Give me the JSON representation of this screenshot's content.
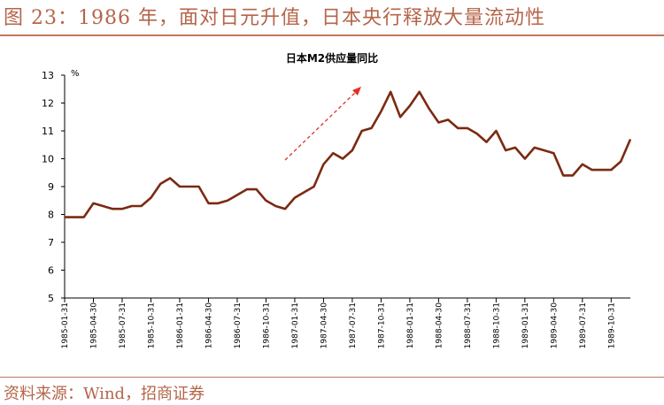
{
  "figure": {
    "title": "图 23：1986 年，面对日元升值，日本央行释放大量流动性",
    "source": "资料来源：Wind，招商证券"
  },
  "colors": {
    "accent": "#b5654a",
    "line": "#7b2a12",
    "arrow": "#e0302a"
  },
  "chart_data": {
    "type": "line",
    "title": "日本M2供应量同比",
    "ylabel": "%",
    "ylim": [
      5,
      13
    ],
    "yticks": [
      5,
      6,
      7,
      8,
      9,
      10,
      11,
      12,
      13
    ],
    "grid": false,
    "legend": "none",
    "xticklabels": [
      "1985-01-31",
      "1985-04-30",
      "1985-07-31",
      "1985-10-31",
      "1986-01-31",
      "1986-04-30",
      "1986-07-31",
      "1986-10-31",
      "1987-01-31",
      "1987-04-30",
      "1987-07-31",
      "1987-10-31",
      "1988-01-31",
      "1988-04-30",
      "1988-07-31",
      "1988-10-31",
      "1989-01-31",
      "1989-04-30",
      "1989-07-31",
      "1989-10-31"
    ],
    "series": [
      {
        "values": [
          7.9,
          7.9,
          7.9,
          8.4,
          8.3,
          8.2,
          8.2,
          8.3,
          8.3,
          8.6,
          9.1,
          9.3,
          9.0,
          9.0,
          9.0,
          8.4,
          8.4,
          8.5,
          8.7,
          8.9,
          8.9,
          8.5,
          8.3,
          8.2,
          8.6,
          8.8,
          9.0,
          9.8,
          10.2,
          10.0,
          10.3,
          11.0,
          11.1,
          11.7,
          12.4,
          11.5,
          11.9,
          12.4,
          11.8,
          11.3,
          11.4,
          11.1,
          11.1,
          10.9,
          10.6,
          11.0,
          10.3,
          10.4,
          10.0,
          10.4,
          10.3,
          10.2,
          9.4,
          9.4,
          9.8,
          9.6,
          9.6,
          9.6,
          9.9,
          10.7
        ]
      }
    ],
    "annotations": [
      {
        "type": "arrow",
        "style": "dashed",
        "description": "upward trend arrow"
      }
    ]
  }
}
